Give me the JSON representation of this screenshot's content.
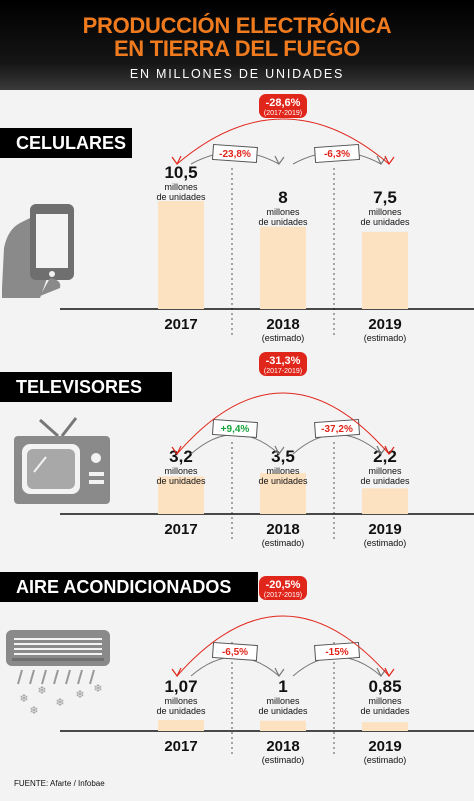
{
  "header": {
    "title_line1": "PRODUCCIÓN ELECTRÓNICA",
    "title_line2": "EN TIERRA DEL FUEGO",
    "subtitle": "EN MILLONES DE UNIDADES"
  },
  "units_label_line1": "millones",
  "units_label_line2": "de unidades",
  "estimated_label": "(estimado)",
  "source": "FUENTE: Afarte / Infobae",
  "colors": {
    "bar": "#fde2c2",
    "accent": "#e0261b",
    "positive": "#17a33a",
    "title": "#f07b1e"
  },
  "chart_data": [
    {
      "type": "bar",
      "title": "CELULARES",
      "icon": "smartphone-icon",
      "categories": [
        "2017",
        "2018",
        "2019"
      ],
      "values": [
        10.5,
        8,
        7.5
      ],
      "value_labels": [
        "10,5",
        "8",
        "7,5"
      ],
      "estimated": [
        false,
        true,
        true
      ],
      "total_change": {
        "label": "-28,6%",
        "period": "(2017-2019)"
      },
      "changes": [
        {
          "label": "-23,8%",
          "sign": "negative"
        },
        {
          "label": "-6,3%",
          "sign": "negative"
        }
      ]
    },
    {
      "type": "bar",
      "title": "TELEVISORES",
      "icon": "television-icon",
      "categories": [
        "2017",
        "2018",
        "2019"
      ],
      "values": [
        3.2,
        3.5,
        2.2
      ],
      "value_labels": [
        "3,2",
        "3,5",
        "2,2"
      ],
      "estimated": [
        false,
        true,
        true
      ],
      "total_change": {
        "label": "-31,3%",
        "period": "(2017-2019)"
      },
      "changes": [
        {
          "label": "+9,4%",
          "sign": "positive"
        },
        {
          "label": "-37,2%",
          "sign": "negative"
        }
      ]
    },
    {
      "type": "bar",
      "title": "AIRE ACONDICIONADOS",
      "icon": "air-conditioner-icon",
      "categories": [
        "2017",
        "2018",
        "2019"
      ],
      "values": [
        1.07,
        1,
        0.85
      ],
      "value_labels": [
        "1,07",
        "1",
        "0,85"
      ],
      "estimated": [
        false,
        true,
        true
      ],
      "total_change": {
        "label": "-20,5%",
        "period": "(2017-2019)"
      },
      "changes": [
        {
          "label": "-6,5%",
          "sign": "negative"
        },
        {
          "label": "-15%",
          "sign": "negative"
        }
      ]
    }
  ]
}
